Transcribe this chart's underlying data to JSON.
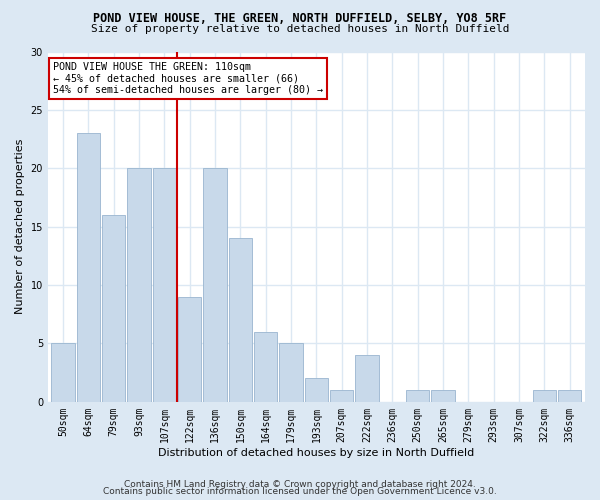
{
  "title": "POND VIEW HOUSE, THE GREEN, NORTH DUFFIELD, SELBY, YO8 5RF",
  "subtitle": "Size of property relative to detached houses in North Duffield",
  "xlabel": "Distribution of detached houses by size in North Duffield",
  "ylabel": "Number of detached properties",
  "categories": [
    "50sqm",
    "64sqm",
    "79sqm",
    "93sqm",
    "107sqm",
    "122sqm",
    "136sqm",
    "150sqm",
    "164sqm",
    "179sqm",
    "193sqm",
    "207sqm",
    "222sqm",
    "236sqm",
    "250sqm",
    "265sqm",
    "279sqm",
    "293sqm",
    "307sqm",
    "322sqm",
    "336sqm"
  ],
  "values": [
    5,
    23,
    16,
    20,
    20,
    9,
    20,
    14,
    6,
    5,
    2,
    1,
    4,
    0,
    1,
    1,
    0,
    0,
    0,
    1,
    1
  ],
  "bar_color": "#c8d9ea",
  "bar_edgecolor": "#9ab5cf",
  "bar_width": 0.92,
  "ylim": [
    0,
    30
  ],
  "yticks": [
    0,
    5,
    10,
    15,
    20,
    25,
    30
  ],
  "vline_x_index": 4.5,
  "vline_color": "#cc0000",
  "annotation_text": "POND VIEW HOUSE THE GREEN: 110sqm\n← 45% of detached houses are smaller (66)\n54% of semi-detached houses are larger (80) →",
  "annotation_box_color": "#ffffff",
  "annotation_box_edgecolor": "#cc0000",
  "footer1": "Contains HM Land Registry data © Crown copyright and database right 2024.",
  "footer2": "Contains public sector information licensed under the Open Government Licence v3.0.",
  "bg_color": "#dce8f3",
  "plot_bg_color": "#ffffff",
  "grid_color": "#dce8f3",
  "title_fontsize": 8.5,
  "subtitle_fontsize": 8.0,
  "axis_label_fontsize": 8.0,
  "tick_fontsize": 7.0,
  "annotation_fontsize": 7.2,
  "footer_fontsize": 6.5
}
